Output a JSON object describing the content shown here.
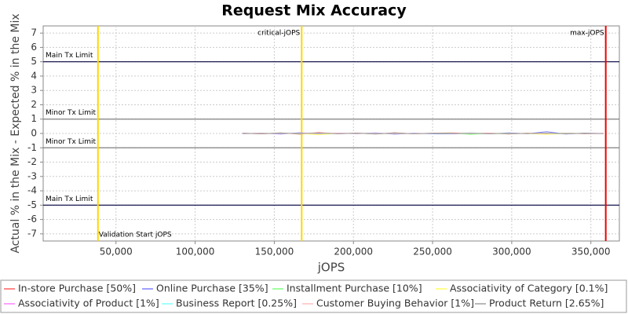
{
  "chart_data": {
    "type": "line",
    "title": "Request Mix Accuracy",
    "x_label": "jOPS",
    "y_label": "Actual % in the Mix - Expected % in the Mix",
    "xlim": [
      4000,
      368000
    ],
    "ylim": [
      -7.5,
      7.5
    ],
    "xticks": [
      {
        "value": 50000,
        "label": "50,000"
      },
      {
        "value": 100000,
        "label": "100,000"
      },
      {
        "value": 150000,
        "label": "150,000"
      },
      {
        "value": 200000,
        "label": "200,000"
      },
      {
        "value": 250000,
        "label": "250,000"
      },
      {
        "value": 300000,
        "label": "300,000"
      },
      {
        "value": 350000,
        "label": "350,000"
      }
    ],
    "yticks": [
      -7,
      -6,
      -5,
      -4,
      -3,
      -2,
      -1,
      0,
      1,
      2,
      3,
      4,
      5,
      6,
      7
    ],
    "grid": true,
    "hlines": [
      {
        "value": 5,
        "label": "Main Tx Limit",
        "color": "#000040"
      },
      {
        "value": 1,
        "label": "Minor Tx Limit",
        "color": "#808080"
      },
      {
        "value": -1,
        "label": "Minor Tx Limit",
        "color": "#808080"
      },
      {
        "value": -5,
        "label": "Main Tx Limit",
        "color": "#000040"
      }
    ],
    "vlines": [
      {
        "value": 38600,
        "label": "Validation Start jOPS",
        "color": "#ffd700",
        "label_pos": "bottom"
      },
      {
        "value": 167300,
        "label": "critical-jOPS",
        "color": "#ffd700",
        "label_pos": "top"
      },
      {
        "value": 359400,
        "label": "max-jOPS",
        "color": "#ee0000",
        "label_pos": "top"
      }
    ],
    "x": [
      130000,
      142000,
      154000,
      166000,
      178000,
      190000,
      202000,
      214000,
      226000,
      238000,
      250000,
      262000,
      274000,
      286000,
      298000,
      310000,
      322000,
      334000,
      346000,
      358000
    ],
    "series": [
      {
        "name": "In-store Purchase [50%]",
        "color": "#ff6060",
        "values": [
          0.02,
          -0.03,
          0.04,
          -0.05,
          0.06,
          -0.02,
          0.03,
          -0.04,
          0.05,
          -0.03,
          0.02,
          0.04,
          -0.02,
          0.03,
          -0.04,
          0.02,
          -0.05,
          0.03,
          -0.02,
          0.01
        ]
      },
      {
        "name": "Online Purchase [35%]",
        "color": "#8080ff",
        "values": [
          -0.02,
          0.03,
          -0.04,
          0.05,
          -0.06,
          0.03,
          -0.02,
          0.04,
          -0.05,
          0.02,
          -0.03,
          -0.03,
          0.02,
          -0.03,
          0.04,
          -0.02,
          0.12,
          -0.04,
          0.03,
          -0.01
        ]
      },
      {
        "name": "Installment Purchase [10%]",
        "color": "#80ff80",
        "values": [
          0.01,
          -0.01,
          0.02,
          -0.02,
          0.03,
          -0.01,
          0.01,
          -0.02,
          0.02,
          -0.01,
          0.01,
          0.02,
          -0.06,
          0.01,
          -0.02,
          0.01,
          -0.02,
          0.02,
          -0.01,
          0.0
        ]
      },
      {
        "name": "Associativity of Category [0.1%]",
        "color": "#ffff60",
        "values": [
          0.0,
          0.01,
          0.0,
          -0.01,
          -0.08,
          0.0,
          0.01,
          0.0,
          -0.01,
          0.0,
          0.01,
          0.0,
          0.0,
          0.01,
          0.0,
          -0.01,
          -0.06,
          0.0,
          0.01,
          0.0
        ]
      },
      {
        "name": "Associativity of Product [1%]",
        "color": "#ff80ff",
        "values": [
          0.01,
          0.0,
          -0.01,
          0.01,
          0.02,
          -0.01,
          0.0,
          0.01,
          -0.01,
          0.0,
          0.01,
          -0.01,
          0.0,
          0.01,
          -0.01,
          0.0,
          0.01,
          -0.01,
          0.0,
          0.01
        ]
      },
      {
        "name": "Business Report [0.25%]",
        "color": "#80ffff",
        "values": [
          0.0,
          0.0,
          0.01,
          0.0,
          -0.01,
          0.0,
          0.0,
          0.01,
          0.0,
          0.0,
          -0.01,
          0.0,
          0.0,
          0.0,
          0.01,
          0.0,
          0.0,
          -0.01,
          0.0,
          0.0
        ]
      },
      {
        "name": "Customer Buying Behavior [1%]",
        "color": "#ffc0c0",
        "values": [
          -0.01,
          0.01,
          0.0,
          0.01,
          -0.01,
          0.02,
          -0.01,
          0.0,
          0.01,
          -0.01,
          0.0,
          0.01,
          0.0,
          -0.01,
          0.01,
          0.0,
          -0.01,
          0.01,
          0.0,
          -0.01
        ]
      },
      {
        "name": "Product Return [2.65%]",
        "color": "#a0a0a0",
        "values": [
          0.01,
          -0.02,
          0.02,
          -0.01,
          0.03,
          -0.02,
          0.02,
          -0.03,
          0.02,
          -0.02,
          0.01,
          -0.01,
          0.02,
          -0.02,
          0.01,
          -0.01,
          0.03,
          -0.02,
          0.01,
          -0.01
        ]
      }
    ]
  }
}
